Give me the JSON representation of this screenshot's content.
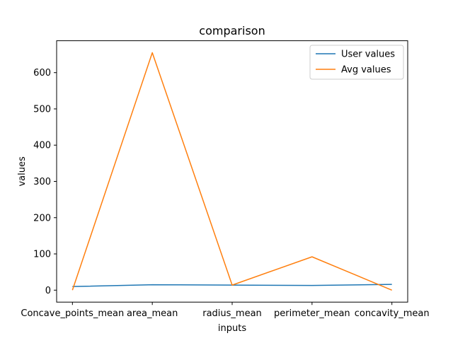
{
  "chart_data": {
    "type": "line",
    "title": "comparison",
    "xlabel": "inputs",
    "ylabel": "values",
    "categories": [
      "Concave_points_mean",
      "area_mean",
      "radius_mean",
      "perimeter_mean",
      "concavity_mean"
    ],
    "series": [
      {
        "name": "User values",
        "color": "#1f77b4",
        "values": [
          10,
          15,
          14,
          13,
          16
        ]
      },
      {
        "name": "Avg values",
        "color": "#ff7f0e",
        "values": [
          0,
          655,
          14,
          92,
          0
        ]
      }
    ],
    "yticks": [
      0,
      100,
      200,
      300,
      400,
      500,
      600
    ],
    "ylim": [
      -33,
      688
    ],
    "grid": false,
    "legend_position": "top-right"
  }
}
